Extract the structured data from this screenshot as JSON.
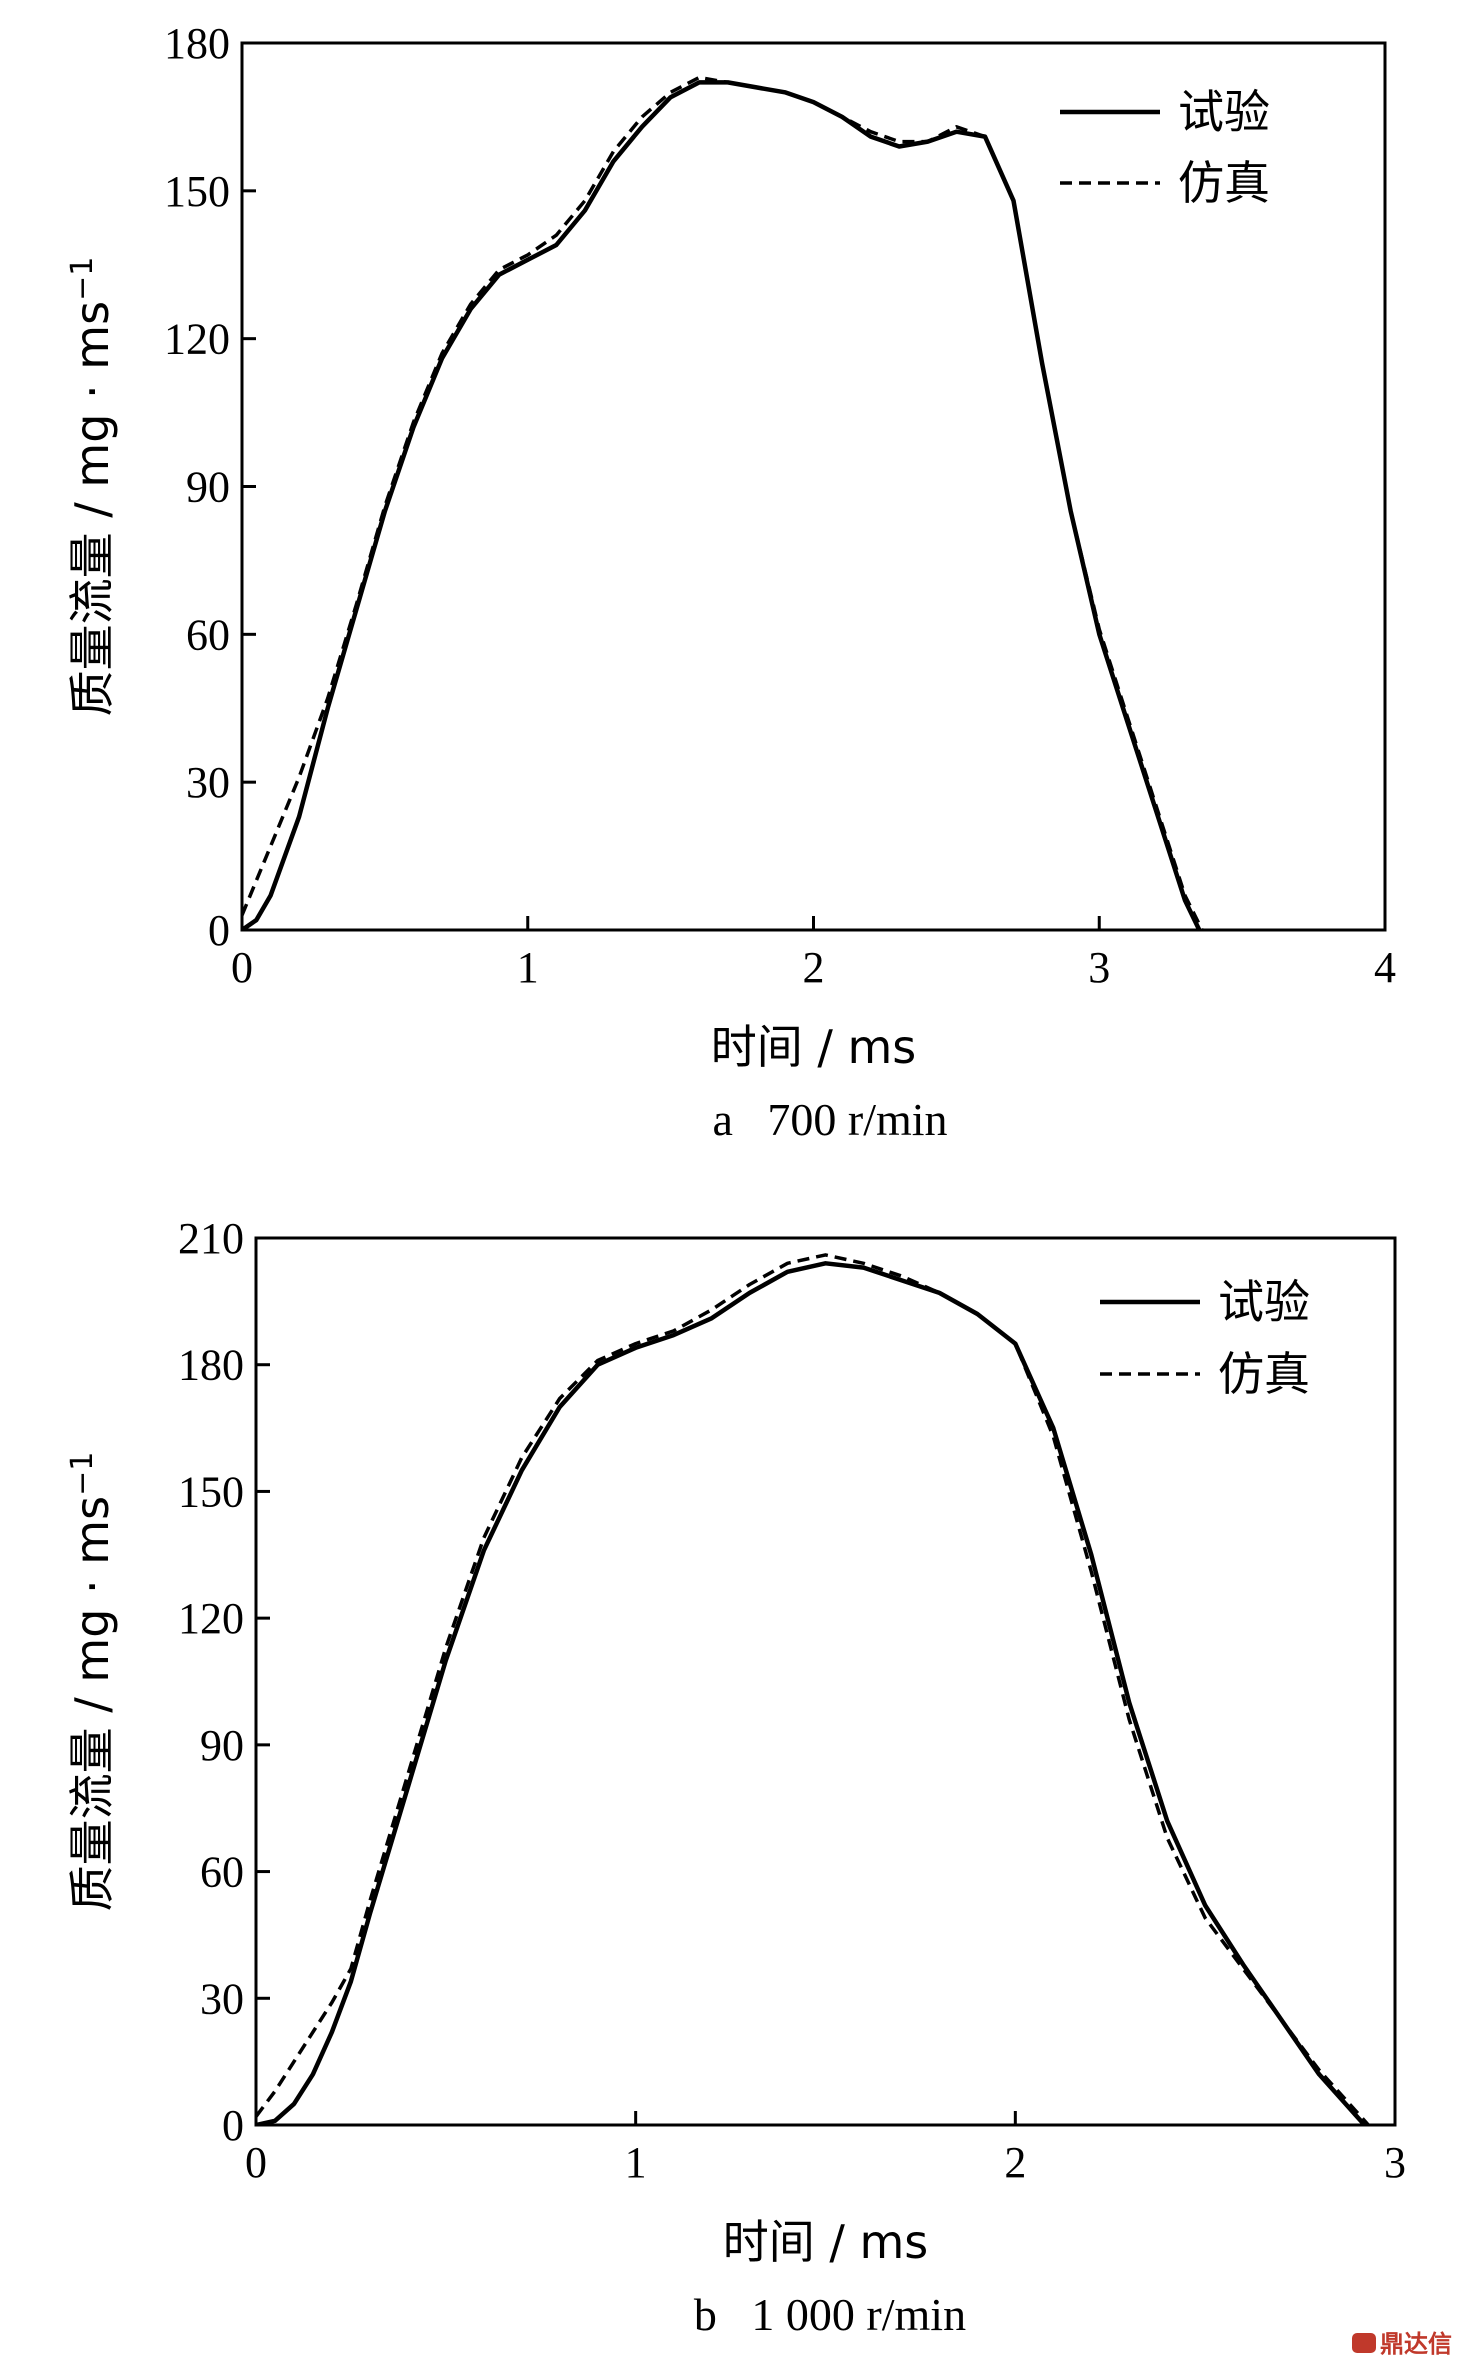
{
  "chart_data": [
    {
      "type": "line",
      "caption": "a   700 r/min",
      "xlabel": "时间 / ms",
      "ylabel": "质量流量 / mg · ms",
      "ylabel_sup": "−1",
      "xlim": [
        0,
        4
      ],
      "ylim": [
        0,
        180
      ],
      "xticks": [
        "0",
        "1",
        "2",
        "3",
        "4"
      ],
      "yticks": [
        "0",
        "30",
        "60",
        "90",
        "120",
        "150",
        "180"
      ],
      "grid": false,
      "legend_position": "top-right",
      "series": [
        {
          "name": "试验",
          "style": "solid",
          "x": [
            0,
            0.05,
            0.1,
            0.2,
            0.3,
            0.4,
            0.5,
            0.6,
            0.7,
            0.8,
            0.9,
            1.0,
            1.1,
            1.2,
            1.3,
            1.4,
            1.5,
            1.6,
            1.7,
            1.8,
            1.9,
            2.0,
            2.1,
            2.2,
            2.3,
            2.4,
            2.5,
            2.6,
            2.7,
            2.8,
            2.9,
            3.0,
            3.1,
            3.2,
            3.3,
            3.35
          ],
          "y": [
            0,
            2,
            7,
            23,
            45,
            65,
            85,
            102,
            116,
            126,
            133,
            136,
            139,
            146,
            156,
            163,
            169,
            172,
            172,
            171,
            170,
            168,
            165,
            161,
            159,
            160,
            162,
            161,
            148,
            115,
            85,
            60,
            42,
            24,
            6,
            0
          ]
        },
        {
          "name": "仿真",
          "style": "dashed",
          "x": [
            0,
            0.05,
            0.1,
            0.2,
            0.3,
            0.4,
            0.5,
            0.6,
            0.7,
            0.8,
            0.9,
            1.0,
            1.1,
            1.2,
            1.3,
            1.4,
            1.5,
            1.6,
            1.7,
            1.8,
            1.9,
            2.0,
            2.1,
            2.2,
            2.3,
            2.4,
            2.5,
            2.6,
            2.7,
            2.8,
            2.9,
            3.0,
            3.1,
            3.2,
            3.3,
            3.36
          ],
          "y": [
            3,
            10,
            17,
            31,
            47,
            66,
            86,
            103,
            117,
            127,
            134,
            137,
            141,
            148,
            158,
            165,
            170,
            173,
            172,
            171,
            170,
            168,
            165,
            162,
            160,
            160,
            163,
            161,
            148,
            115,
            85,
            61,
            43,
            25,
            7,
            0
          ]
        }
      ]
    },
    {
      "type": "line",
      "caption": "b   1 000 r/min",
      "xlabel": "时间 / ms",
      "ylabel": "质量流量 / mg · ms",
      "ylabel_sup": "−1",
      "xlim": [
        0,
        3
      ],
      "ylim": [
        0,
        210
      ],
      "xticks": [
        "0",
        "1",
        "2",
        "3"
      ],
      "yticks": [
        "0",
        "30",
        "60",
        "90",
        "120",
        "150",
        "180",
        "210"
      ],
      "grid": false,
      "legend_position": "top-right",
      "series": [
        {
          "name": "试验",
          "style": "solid",
          "x": [
            0,
            0.05,
            0.1,
            0.15,
            0.2,
            0.25,
            0.3,
            0.4,
            0.5,
            0.6,
            0.7,
            0.8,
            0.9,
            1.0,
            1.1,
            1.2,
            1.3,
            1.4,
            1.5,
            1.6,
            1.7,
            1.8,
            1.9,
            2.0,
            2.1,
            2.2,
            2.3,
            2.4,
            2.5,
            2.6,
            2.7,
            2.8,
            2.9,
            2.92
          ],
          "y": [
            0,
            1,
            5,
            12,
            22,
            34,
            50,
            80,
            110,
            136,
            155,
            170,
            180,
            184,
            187,
            191,
            197,
            202,
            204,
            203,
            200,
            197,
            192,
            185,
            165,
            135,
            100,
            72,
            52,
            38,
            25,
            12,
            2,
            0
          ]
        },
        {
          "name": "仿真",
          "style": "dashed",
          "x": [
            0,
            0.05,
            0.1,
            0.15,
            0.2,
            0.25,
            0.3,
            0.4,
            0.5,
            0.6,
            0.7,
            0.8,
            0.9,
            1.0,
            1.1,
            1.2,
            1.3,
            1.4,
            1.5,
            1.6,
            1.7,
            1.8,
            1.9,
            2.0,
            2.1,
            2.2,
            2.3,
            2.4,
            2.5,
            2.6,
            2.7,
            2.8,
            2.9,
            2.93
          ],
          "y": [
            2,
            8,
            15,
            22,
            29,
            37,
            53,
            83,
            113,
            139,
            158,
            172,
            181,
            185,
            188,
            193,
            199,
            204,
            206,
            204,
            201,
            197,
            192,
            185,
            163,
            131,
            96,
            68,
            49,
            37,
            25,
            13,
            3,
            0
          ]
        }
      ]
    }
  ],
  "watermark": {
    "icon": "logo-badge",
    "text": "鼎达信"
  }
}
